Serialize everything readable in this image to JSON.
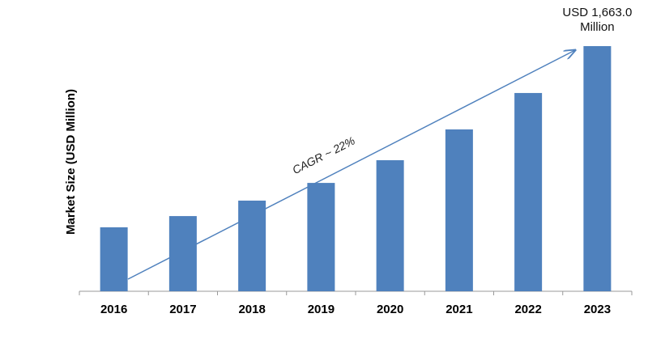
{
  "chart_data": {
    "type": "bar",
    "y_label": "Market Size (USD Million)",
    "categories": [
      "2016",
      "2017",
      "2018",
      "2019",
      "2020",
      "2021",
      "2022",
      "2023"
    ],
    "values": [
      434,
      510,
      615,
      735,
      889,
      1098,
      1345,
      1663
    ],
    "value_labels": [
      null,
      null,
      null,
      null,
      null,
      null,
      null,
      "USD 1,663.0 Million"
    ],
    "annotation": "CAGR ~ 22%",
    "color": "#4f81bd"
  }
}
